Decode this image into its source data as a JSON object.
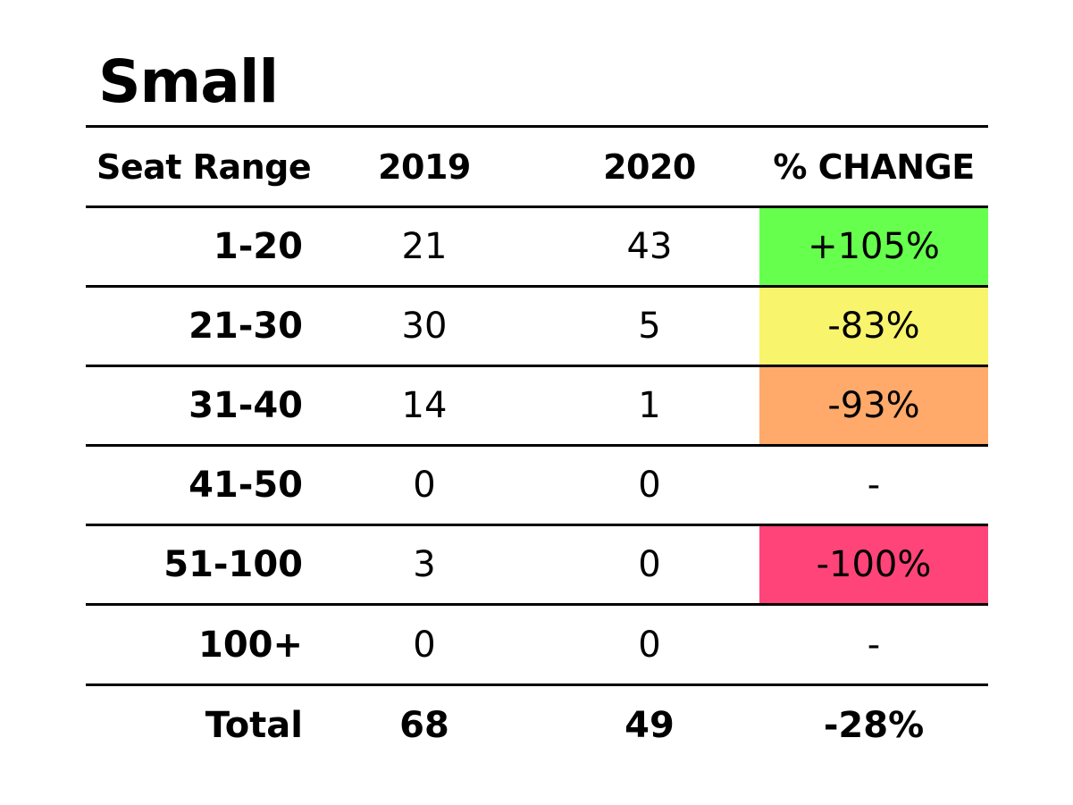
{
  "title": "Small",
  "chart_data": {
    "type": "table",
    "columns": [
      "Seat Range",
      "2019",
      "2020",
      "% CHANGE"
    ],
    "rows": [
      {
        "range": "1-20",
        "y2019": "21",
        "y2020": "43",
        "change": "+105%",
        "change_color": "#66ff4d"
      },
      {
        "range": "21-30",
        "y2019": "30",
        "y2020": "5",
        "change": "-83%",
        "change_color": "#f8f46c"
      },
      {
        "range": "31-40",
        "y2019": "14",
        "y2020": "1",
        "change": "-93%",
        "change_color": "#ffa96b"
      },
      {
        "range": "41-50",
        "y2019": "0",
        "y2020": "0",
        "change": "-",
        "change_color": ""
      },
      {
        "range": "51-100",
        "y2019": "3",
        "y2020": "0",
        "change": "-100%",
        "change_color": "#ff4479"
      },
      {
        "range": "100+",
        "y2019": "0",
        "y2020": "0",
        "change": "-",
        "change_color": ""
      }
    ],
    "total": {
      "label": "Total",
      "y2019": "68",
      "y2020": "49",
      "change": "-28%"
    }
  }
}
